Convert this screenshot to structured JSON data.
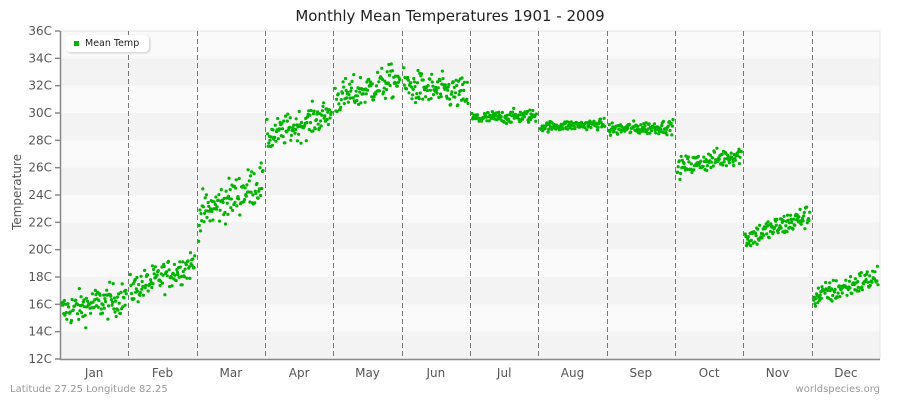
{
  "chart_data": {
    "type": "scatter",
    "title": "Monthly Mean Temperatures 1901 - 2009",
    "xlabel": "",
    "ylabel": "Temperature",
    "ylim": [
      12,
      36
    ],
    "y_ticks": [
      "12C",
      "14C",
      "16C",
      "18C",
      "20C",
      "22C",
      "24C",
      "26C",
      "28C",
      "30C",
      "32C",
      "34C",
      "36C"
    ],
    "categories": [
      "Jan",
      "Feb",
      "Mar",
      "Apr",
      "May",
      "Jun",
      "Jul",
      "Aug",
      "Sep",
      "Oct",
      "Nov",
      "Dec"
    ],
    "legend": [
      {
        "label": "Mean Temp",
        "color": "#00b400"
      }
    ],
    "legend_position": "top-left",
    "grid": "horizontal bands, dashed vertical month separators",
    "series": [
      {
        "name": "Mean Temp",
        "years": "1901-2009",
        "points_per_month": 109,
        "monthly_summary": [
          {
            "month": "Jan",
            "start": 15.5,
            "end": 16.5,
            "min": 13.7,
            "max": 17.7,
            "spread": 1.0
          },
          {
            "month": "Feb",
            "start": 17.0,
            "end": 19.0,
            "min": 16.0,
            "max": 21.0,
            "spread": 0.9
          },
          {
            "month": "Mar",
            "start": 22.5,
            "end": 25.0,
            "min": 20.5,
            "max": 27.0,
            "spread": 1.2
          },
          {
            "month": "Apr",
            "start": 28.2,
            "end": 30.0,
            "min": 26.6,
            "max": 31.3,
            "spread": 0.9
          },
          {
            "month": "May",
            "start": 31.0,
            "end": 32.5,
            "min": 28.8,
            "max": 34.6,
            "spread": 1.0
          },
          {
            "month": "Jun",
            "start": 32.0,
            "end": 31.3,
            "min": 29.5,
            "max": 34.8,
            "spread": 1.0
          },
          {
            "month": "Jul",
            "start": 29.6,
            "end": 29.8,
            "min": 28.8,
            "max": 30.8,
            "spread": 0.4
          },
          {
            "month": "Aug",
            "start": 29.0,
            "end": 29.2,
            "min": 28.0,
            "max": 30.2,
            "spread": 0.3
          },
          {
            "month": "Sep",
            "start": 28.8,
            "end": 29.0,
            "min": 27.8,
            "max": 30.6,
            "spread": 0.4
          },
          {
            "month": "Oct",
            "start": 26.0,
            "end": 27.0,
            "min": 24.2,
            "max": 28.3,
            "spread": 0.6
          },
          {
            "month": "Nov",
            "start": 20.8,
            "end": 22.5,
            "min": 19.4,
            "max": 24.4,
            "spread": 0.7
          },
          {
            "month": "Dec",
            "start": 16.5,
            "end": 18.0,
            "min": 14.9,
            "max": 19.6,
            "spread": 0.7
          }
        ]
      }
    ]
  },
  "labels": {
    "title": "Monthly Mean Temperatures 1901 - 2009",
    "ylabel": "Temperature",
    "legend": "Mean Temp",
    "footer_left": "Latitude 27.25 Longitude 82.25",
    "footer_right": "worldspecies.org"
  },
  "colors": {
    "point": "#00b400",
    "band_dark": "#f3f3f3",
    "band_light": "#fafafa",
    "axis": "#888888",
    "separator": "#777777"
  }
}
